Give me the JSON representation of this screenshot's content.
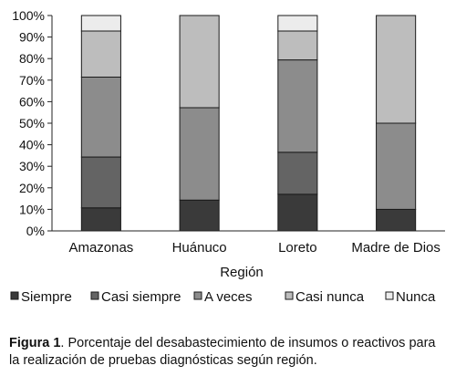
{
  "chart_data": {
    "type": "bar",
    "stacked": true,
    "categories": [
      "Amazonas",
      "Huánuco",
      "Loreto",
      "Madre de Dios"
    ],
    "series": [
      {
        "name": "Siempre",
        "color": "#3a3a3a",
        "values": [
          10.7,
          14.3,
          17.0,
          10.0
        ]
      },
      {
        "name": "Casi siempre",
        "color": "#646464",
        "values": [
          23.6,
          0.0,
          19.5,
          0.0
        ]
      },
      {
        "name": "A veces",
        "color": "#8c8c8c",
        "values": [
          37.1,
          42.9,
          42.9,
          40.0
        ]
      },
      {
        "name": "Casi nunca",
        "color": "#bdbdbd",
        "values": [
          21.4,
          42.8,
          13.4,
          50.0
        ]
      },
      {
        "name": "Nunca",
        "color": "#ececec",
        "values": [
          7.2,
          0.0,
          7.2,
          0.0
        ]
      }
    ],
    "xlabel": "Región",
    "ylabel": "",
    "ylim": [
      0,
      100
    ],
    "yticks": [
      "0%",
      "10%",
      "20%",
      "30%",
      "40%",
      "50%",
      "60%",
      "70%",
      "80%",
      "90%",
      "100%"
    ],
    "grid": false,
    "legend_position": "bottom"
  },
  "caption": {
    "label": "Figura 1",
    "text": ". Porcentaje del desabastecimiento de insumos o reactivos para la realización de pruebas diagnósticas según región."
  }
}
